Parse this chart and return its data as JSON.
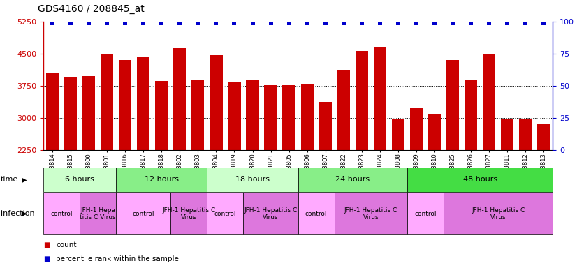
{
  "title": "GDS4160 / 208845_at",
  "samples": [
    "GSM523814",
    "GSM523815",
    "GSM523800",
    "GSM523801",
    "GSM523816",
    "GSM523817",
    "GSM523818",
    "GSM523802",
    "GSM523803",
    "GSM523804",
    "GSM523819",
    "GSM523820",
    "GSM523821",
    "GSM523805",
    "GSM523806",
    "GSM523807",
    "GSM523822",
    "GSM523823",
    "GSM523824",
    "GSM523808",
    "GSM523809",
    "GSM523810",
    "GSM523825",
    "GSM523826",
    "GSM523827",
    "GSM523811",
    "GSM523812",
    "GSM523813"
  ],
  "counts": [
    4050,
    3950,
    3970,
    4500,
    4350,
    4430,
    3870,
    4630,
    3900,
    4470,
    3850,
    3880,
    3760,
    3770,
    3800,
    3380,
    4100,
    4560,
    4650,
    2980,
    3220,
    3080,
    4350,
    3900,
    4500,
    2960,
    2990,
    2870
  ],
  "ylim_left": [
    2250,
    5250
  ],
  "ylim_right": [
    0,
    100
  ],
  "yticks_left": [
    2250,
    3000,
    3750,
    4500,
    5250
  ],
  "yticks_right": [
    0,
    25,
    50,
    75,
    100
  ],
  "bar_color": "#cc0000",
  "dot_color": "#0000cc",
  "gridlines": [
    3000,
    3750,
    4500
  ],
  "time_groups": [
    {
      "label": "6 hours",
      "start": 0,
      "end": 4,
      "color": "#ccffcc"
    },
    {
      "label": "12 hours",
      "start": 4,
      "end": 9,
      "color": "#88ee88"
    },
    {
      "label": "18 hours",
      "start": 9,
      "end": 14,
      "color": "#ccffcc"
    },
    {
      "label": "24 hours",
      "start": 14,
      "end": 20,
      "color": "#88ee88"
    },
    {
      "label": "48 hours",
      "start": 20,
      "end": 28,
      "color": "#44dd44"
    }
  ],
  "infection_groups": [
    {
      "label": "control",
      "start": 0,
      "end": 2,
      "color": "#ffaaff"
    },
    {
      "label": "JFH-1 Hepa\ntitis C Virus",
      "start": 2,
      "end": 4,
      "color": "#dd77dd"
    },
    {
      "label": "control",
      "start": 4,
      "end": 7,
      "color": "#ffaaff"
    },
    {
      "label": "JFH-1 Hepatitis C\nVirus",
      "start": 7,
      "end": 9,
      "color": "#dd77dd"
    },
    {
      "label": "control",
      "start": 9,
      "end": 11,
      "color": "#ffaaff"
    },
    {
      "label": "JFH-1 Hepatitis C\nVirus",
      "start": 11,
      "end": 14,
      "color": "#dd77dd"
    },
    {
      "label": "control",
      "start": 14,
      "end": 16,
      "color": "#ffaaff"
    },
    {
      "label": "JFH-1 Hepatitis C\nVirus",
      "start": 16,
      "end": 20,
      "color": "#dd77dd"
    },
    {
      "label": "control",
      "start": 20,
      "end": 22,
      "color": "#ffaaff"
    },
    {
      "label": "JFH-1 Hepatitis C\nVirus",
      "start": 22,
      "end": 28,
      "color": "#dd77dd"
    }
  ],
  "legend": [
    {
      "label": "count",
      "color": "#cc0000"
    },
    {
      "label": "percentile rank within the sample",
      "color": "#0000cc"
    }
  ]
}
